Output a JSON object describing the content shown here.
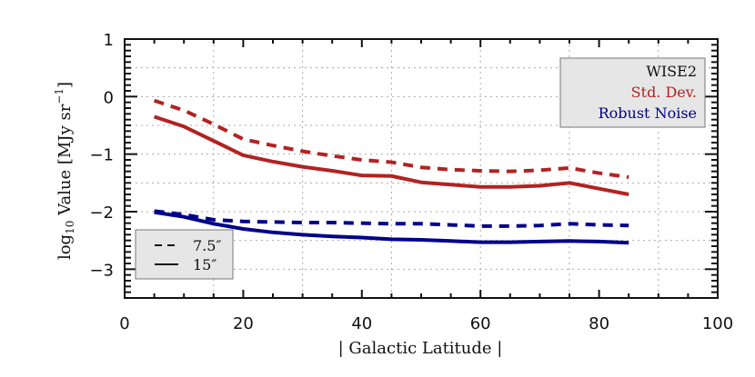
{
  "chart_data": {
    "type": "line",
    "title": "",
    "xlabel": "| Galactic Latitude |",
    "ylabel": "log10 Value [MJy sr^-1]",
    "ylabel_parts": {
      "main": "log",
      "sub": "10",
      "rest": " Value [MJy sr",
      "sup": "−1",
      "close": "]"
    },
    "xlim": [
      0,
      100
    ],
    "ylim": [
      -3.5,
      1
    ],
    "xticks": [
      0,
      20,
      40,
      60,
      80,
      100
    ],
    "yticks": [
      1,
      0,
      -1,
      -2,
      -3
    ],
    "ytick_labels": [
      "1",
      "0",
      "−1",
      "−2",
      "−3"
    ],
    "grid": {
      "on": true,
      "x_step": 15,
      "y_step": 0.5,
      "style": "dotted"
    },
    "x": [
      5,
      10,
      15,
      20,
      25,
      30,
      35,
      40,
      45,
      50,
      55,
      60,
      65,
      70,
      75,
      80,
      85
    ],
    "series": [
      {
        "name": "Std. Dev. 7.5″",
        "metric": "Std. Dev.",
        "beam": "7.5″",
        "color": "#b22222",
        "dash": true,
        "values": [
          -0.07,
          -0.24,
          -0.48,
          -0.74,
          -0.85,
          -0.95,
          -1.03,
          -1.1,
          -1.14,
          -1.23,
          -1.27,
          -1.29,
          -1.3,
          -1.28,
          -1.24,
          -1.33,
          -1.4
        ]
      },
      {
        "name": "Std. Dev. 15″",
        "metric": "Std. Dev.",
        "beam": "15″",
        "color": "#b22222",
        "dash": false,
        "values": [
          -0.35,
          -0.52,
          -0.77,
          -1.02,
          -1.13,
          -1.22,
          -1.29,
          -1.37,
          -1.38,
          -1.49,
          -1.53,
          -1.57,
          -1.57,
          -1.55,
          -1.5,
          -1.6,
          -1.7
        ]
      },
      {
        "name": "Robust Noise 7.5″",
        "metric": "Robust Noise",
        "beam": "7.5″",
        "color": "#00008b",
        "dash": true,
        "values": [
          -1.99,
          -2.05,
          -2.14,
          -2.17,
          -2.18,
          -2.19,
          -2.19,
          -2.2,
          -2.21,
          -2.21,
          -2.23,
          -2.25,
          -2.25,
          -2.24,
          -2.21,
          -2.23,
          -2.24
        ]
      },
      {
        "name": "Robust Noise 15″",
        "metric": "Robust Noise",
        "beam": "15″",
        "color": "#00008b",
        "dash": false,
        "values": [
          -2.01,
          -2.09,
          -2.21,
          -2.3,
          -2.36,
          -2.4,
          -2.43,
          -2.45,
          -2.48,
          -2.49,
          -2.51,
          -2.53,
          -2.53,
          -2.52,
          -2.51,
          -2.52,
          -2.54
        ]
      }
    ],
    "legends": [
      {
        "position": "top-right",
        "entries": [
          {
            "label": "WISE2",
            "color": "#111111"
          },
          {
            "label": "Std. Dev.",
            "color": "#b22222"
          },
          {
            "label": "Robust Noise",
            "color": "#00008b"
          }
        ]
      },
      {
        "position": "bottom-left",
        "entries": [
          {
            "label": "7.5″",
            "line": "dashed"
          },
          {
            "label": "15″",
            "line": "solid"
          }
        ]
      }
    ]
  }
}
